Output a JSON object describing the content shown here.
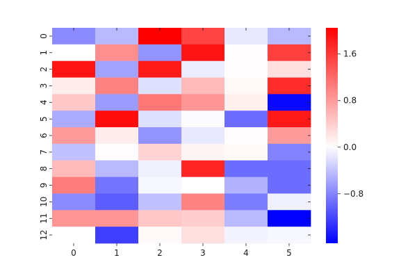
{
  "chart_data": {
    "type": "heatmap",
    "title": "",
    "xlabel": "",
    "ylabel": "",
    "x_categories": [
      "0",
      "1",
      "2",
      "3",
      "4",
      "5"
    ],
    "y_categories": [
      "0",
      "1",
      "2",
      "3",
      "4",
      "5",
      "6",
      "7",
      "8",
      "9",
      "10",
      "11",
      "12"
    ],
    "values": [
      [
        -0.75,
        -0.45,
        2.05,
        1.5,
        -0.15,
        -0.45
      ],
      [
        0.0,
        0.9,
        -0.7,
        1.9,
        0.02,
        1.55
      ],
      [
        1.9,
        -0.6,
        1.85,
        -0.12,
        0.02,
        0.25
      ],
      [
        0.15,
        1.0,
        -0.2,
        0.55,
        0.05,
        1.7
      ],
      [
        0.45,
        -0.65,
        1.1,
        0.85,
        0.12,
        -1.6
      ],
      [
        -0.55,
        1.95,
        -0.2,
        -0.02,
        -0.95,
        1.85
      ],
      [
        0.8,
        0.15,
        -0.7,
        -0.15,
        0.02,
        0.8
      ],
      [
        -0.4,
        0.02,
        0.35,
        0.08,
        0.05,
        -0.8
      ],
      [
        0.55,
        -0.45,
        -0.1,
        1.75,
        -0.95,
        -0.95
      ],
      [
        1.05,
        -0.9,
        -0.05,
        0.0,
        -0.5,
        -0.95
      ],
      [
        -0.75,
        -1.05,
        -0.4,
        1.0,
        -0.85,
        -0.1
      ],
      [
        0.85,
        0.85,
        0.45,
        0.4,
        -0.45,
        -1.65
      ],
      [
        0.0,
        -1.25,
        0.05,
        0.25,
        -0.08,
        -0.05
      ]
    ],
    "colorbar": {
      "colormap": "bwr",
      "vmin": -1.65,
      "vmax": 2.05,
      "ticks": [
        -0.8,
        0.0,
        0.8,
        1.6
      ],
      "tick_labels": [
        "−0.8",
        "0.0",
        "0.8",
        "1.6"
      ]
    },
    "colors": {
      "low": "#0000ff",
      "mid": "#ffffff",
      "high": "#ff0000"
    },
    "grid": false,
    "legend": "colorbar-right"
  }
}
